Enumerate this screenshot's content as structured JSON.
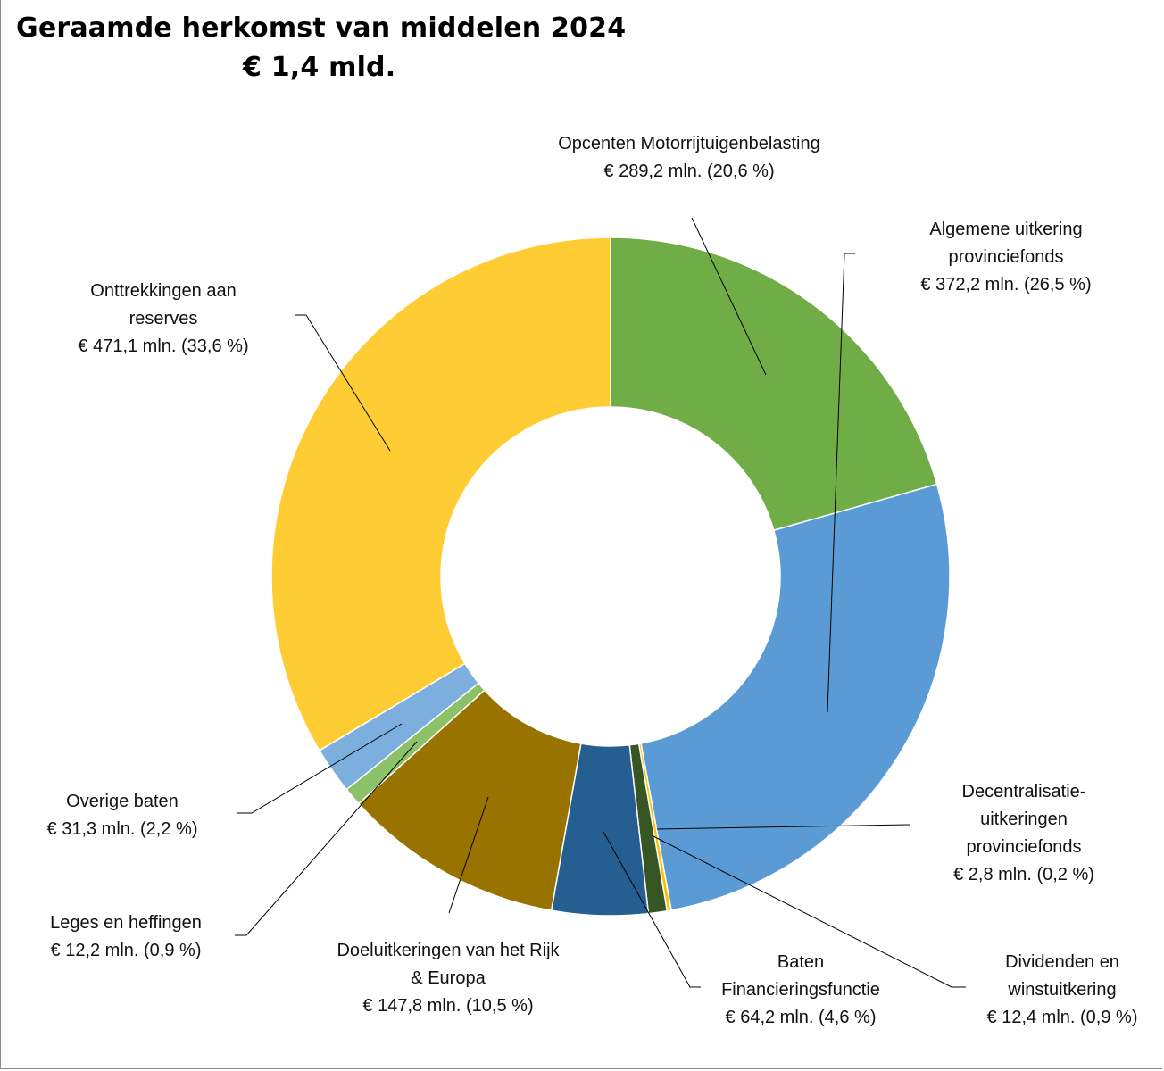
{
  "chart_data": {
    "type": "pie",
    "title": "Geraamde herkomst van middelen 2024",
    "subtitle": "€  1,4 mld.",
    "slices": [
      {
        "label": "Opcenten Motorrijtuigenbelasting",
        "value": 289.2,
        "value_text": "€ 289,2 mln. (20,6 %)",
        "color": "#70ad47"
      },
      {
        "label": "Algemene uitkering provinciefonds",
        "value": 372.2,
        "value_text": "€ 372,2 mln. (26,5 %)",
        "color": "#5b9bd5"
      },
      {
        "label": "Decentralisatie-uitkeringen provinciefonds",
        "value": 2.8,
        "value_text": "€ 2,8 mln. (0,2 %)",
        "color": "#ffc000"
      },
      {
        "label": "Dividenden en winstuitkering",
        "value": 12.4,
        "value_text": "€ 12,4 mln. (0,9 %)",
        "color": "#375623"
      },
      {
        "label": "Baten Financieringsfunctie",
        "value": 64.2,
        "value_text": "€ 64,2 mln. (4,6 %)",
        "color": "#255e91"
      },
      {
        "label": "Doeluitkeringen van het Rijk & Europa",
        "value": 147.8,
        "value_text": "€ 147,8 mln. (10,5 %)",
        "color": "#997300"
      },
      {
        "label": "Leges en heffingen",
        "value": 12.2,
        "value_text": "€ 12,2 mln. (0,9 %)",
        "color": "#8cc168"
      },
      {
        "label": "Overige baten",
        "value": 31.3,
        "value_text": "€ 31,3 mln. (2,2 %)",
        "color": "#7cafdd"
      },
      {
        "label": "Onttrekkingen aan reserves",
        "value": 471.1,
        "value_text": "€ 471,1 mln. (33,6 %)",
        "color": "#ffcd33"
      }
    ]
  },
  "labels": [
    {
      "lines": [
        "Opcenten Motorrijtuigenbelasting",
        "€ 289,2 mln. (20,6 %)"
      ]
    },
    {
      "lines": [
        "Algemene uitkering",
        "provinciefonds",
        "€ 372,2 mln. (26,5 %)"
      ]
    },
    {
      "lines": [
        "Decentralisatie-",
        "uitkeringen",
        "provinciefonds",
        "€ 2,8 mln. (0,2 %)"
      ]
    },
    {
      "lines": [
        "Dividenden en",
        "winstuitkering",
        "€ 12,4 mln. (0,9 %)"
      ]
    },
    {
      "lines": [
        "Baten",
        "Financieringsfunctie",
        "€ 64,2 mln. (4,6 %)"
      ]
    },
    {
      "lines": [
        "Doeluitkeringen van het Rijk",
        "& Europa",
        "€ 147,8 mln. (10,5 %)"
      ]
    },
    {
      "lines": [
        "Leges en heffingen",
        "€ 12,2 mln. (0,9 %)"
      ]
    },
    {
      "lines": [
        "Overige baten",
        "€ 31,3 mln. (2,2 %)"
      ]
    },
    {
      "lines": [
        "Onttrekkingen aan",
        "reserves",
        "€ 471,1 mln. (33,6 %)"
      ]
    }
  ]
}
